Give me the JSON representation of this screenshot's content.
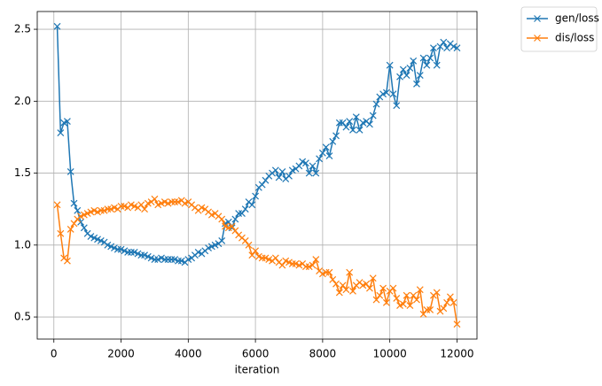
{
  "chart_data": {
    "type": "line",
    "x_label": "iteration",
    "x": [
      100,
      200,
      300,
      400,
      500,
      600,
      700,
      800,
      900,
      1000,
      1100,
      1200,
      1300,
      1400,
      1500,
      1600,
      1700,
      1800,
      1900,
      2000,
      2100,
      2200,
      2300,
      2400,
      2500,
      2600,
      2700,
      2800,
      2900,
      3000,
      3100,
      3200,
      3300,
      3400,
      3500,
      3600,
      3700,
      3800,
      3900,
      4000,
      4100,
      4200,
      4300,
      4400,
      4500,
      4600,
      4700,
      4800,
      4900,
      5000,
      5100,
      5200,
      5300,
      5400,
      5500,
      5600,
      5700,
      5800,
      5900,
      6000,
      6100,
      6200,
      6300,
      6400,
      6500,
      6600,
      6700,
      6800,
      6900,
      7000,
      7100,
      7200,
      7300,
      7400,
      7500,
      7600,
      7700,
      7800,
      7900,
      8000,
      8100,
      8200,
      8300,
      8400,
      8500,
      8600,
      8700,
      8800,
      8900,
      9000,
      9100,
      9200,
      9300,
      9400,
      9500,
      9600,
      9700,
      9800,
      9900,
      10000,
      10100,
      10200,
      10300,
      10400,
      10500,
      10600,
      10700,
      10800,
      10900,
      11000,
      11100,
      11200,
      11300,
      11400,
      11500,
      11600,
      11700,
      11800,
      11900,
      12000
    ],
    "series": [
      {
        "name": "gen/loss",
        "color": "#1f77b4",
        "values": [
          2.52,
          1.78,
          1.85,
          1.86,
          1.51,
          1.29,
          1.24,
          1.16,
          1.12,
          1.08,
          1.06,
          1.05,
          1.04,
          1.03,
          1.02,
          1.0,
          0.99,
          0.98,
          0.97,
          0.97,
          0.96,
          0.95,
          0.95,
          0.95,
          0.94,
          0.93,
          0.93,
          0.92,
          0.91,
          0.9,
          0.9,
          0.91,
          0.9,
          0.9,
          0.9,
          0.9,
          0.89,
          0.89,
          0.88,
          0.9,
          0.91,
          0.93,
          0.95,
          0.94,
          0.96,
          0.98,
          0.99,
          1.0,
          1.01,
          1.03,
          1.15,
          1.16,
          1.12,
          1.18,
          1.22,
          1.22,
          1.25,
          1.3,
          1.28,
          1.34,
          1.4,
          1.42,
          1.45,
          1.48,
          1.5,
          1.52,
          1.47,
          1.51,
          1.46,
          1.48,
          1.52,
          1.53,
          1.55,
          1.58,
          1.57,
          1.5,
          1.55,
          1.5,
          1.6,
          1.64,
          1.68,
          1.62,
          1.72,
          1.76,
          1.85,
          1.85,
          1.82,
          1.86,
          1.8,
          1.89,
          1.8,
          1.85,
          1.86,
          1.84,
          1.9,
          1.98,
          2.03,
          2.05,
          2.06,
          2.25,
          2.05,
          1.97,
          2.17,
          2.22,
          2.18,
          2.23,
          2.28,
          2.12,
          2.18,
          2.3,
          2.25,
          2.3,
          2.37,
          2.25,
          2.38,
          2.41,
          2.37,
          2.4,
          2.38,
          2.37
        ]
      },
      {
        "name": "dis/loss",
        "color": "#ff7f0e",
        "values": [
          1.28,
          1.08,
          0.91,
          0.89,
          1.11,
          1.15,
          1.18,
          1.2,
          1.21,
          1.22,
          1.23,
          1.24,
          1.23,
          1.24,
          1.24,
          1.25,
          1.25,
          1.26,
          1.25,
          1.27,
          1.27,
          1.26,
          1.28,
          1.27,
          1.26,
          1.28,
          1.25,
          1.29,
          1.3,
          1.32,
          1.28,
          1.29,
          1.3,
          1.29,
          1.3,
          1.3,
          1.3,
          1.31,
          1.29,
          1.3,
          1.28,
          1.26,
          1.24,
          1.26,
          1.25,
          1.23,
          1.21,
          1.22,
          1.2,
          1.18,
          1.13,
          1.12,
          1.13,
          1.1,
          1.07,
          1.05,
          1.03,
          1.0,
          0.93,
          0.96,
          0.92,
          0.91,
          0.91,
          0.9,
          0.89,
          0.91,
          0.88,
          0.86,
          0.89,
          0.88,
          0.87,
          0.87,
          0.86,
          0.87,
          0.85,
          0.85,
          0.86,
          0.9,
          0.82,
          0.8,
          0.81,
          0.81,
          0.76,
          0.73,
          0.67,
          0.72,
          0.69,
          0.81,
          0.68,
          0.72,
          0.74,
          0.72,
          0.73,
          0.7,
          0.77,
          0.62,
          0.65,
          0.7,
          0.6,
          0.68,
          0.7,
          0.63,
          0.58,
          0.59,
          0.65,
          0.58,
          0.65,
          0.62,
          0.69,
          0.52,
          0.55,
          0.55,
          0.65,
          0.67,
          0.54,
          0.56,
          0.6,
          0.64,
          0.6,
          0.45
        ]
      }
    ],
    "xlim": [
      -495,
      12595
    ],
    "xticks": [
      0,
      2000,
      4000,
      6000,
      8000,
      10000,
      12000
    ],
    "ylim": [
      0.3465,
      2.6235
    ],
    "yticks": [
      {
        "value": 0.5,
        "label": "0.5"
      },
      {
        "value": 1.0,
        "label": "1.0"
      },
      {
        "value": 1.5,
        "label": "1.5"
      },
      {
        "value": 2.0,
        "label": "2.0"
      },
      {
        "value": 2.5,
        "label": "2.5"
      }
    ],
    "grid": true,
    "legend": "outside-upper-right"
  }
}
